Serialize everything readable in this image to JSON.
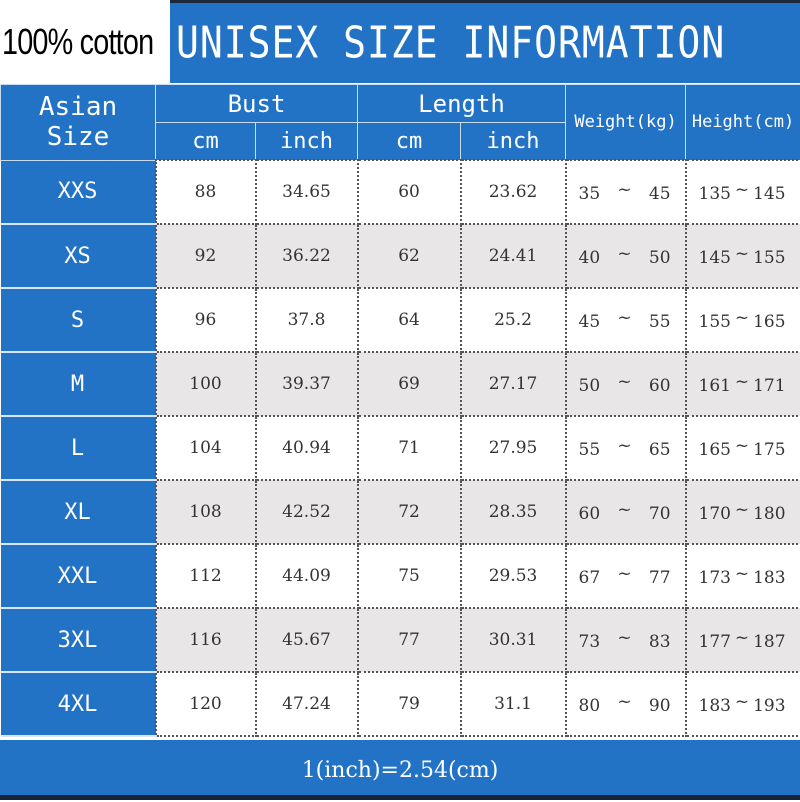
{
  "badge": "100% cotton",
  "title": "UNISEX SIZE INFORMATION",
  "headers": {
    "size": "Asian Size",
    "bust": "Bust",
    "length": "Length",
    "weight": "Weight(kg)",
    "height": "Height(cm)",
    "cm": "cm",
    "inch": "inch",
    "tilde": "~"
  },
  "rows": [
    {
      "size": "XXS",
      "bust_cm": "88",
      "bust_inch": "34.65",
      "len_cm": "60",
      "len_inch": "23.62",
      "w_min": "35",
      "w_max": "45",
      "h_min": "135",
      "h_max": "145"
    },
    {
      "size": "XS",
      "bust_cm": "92",
      "bust_inch": "36.22",
      "len_cm": "62",
      "len_inch": "24.41",
      "w_min": "40",
      "w_max": "50",
      "h_min": "145",
      "h_max": "155"
    },
    {
      "size": "S",
      "bust_cm": "96",
      "bust_inch": "37.8",
      "len_cm": "64",
      "len_inch": "25.2",
      "w_min": "45",
      "w_max": "55",
      "h_min": "155",
      "h_max": "165"
    },
    {
      "size": "M",
      "bust_cm": "100",
      "bust_inch": "39.37",
      "len_cm": "69",
      "len_inch": "27.17",
      "w_min": "50",
      "w_max": "60",
      "h_min": "161",
      "h_max": "171"
    },
    {
      "size": "L",
      "bust_cm": "104",
      "bust_inch": "40.94",
      "len_cm": "71",
      "len_inch": "27.95",
      "w_min": "55",
      "w_max": "65",
      "h_min": "165",
      "h_max": "175"
    },
    {
      "size": "XL",
      "bust_cm": "108",
      "bust_inch": "42.52",
      "len_cm": "72",
      "len_inch": "28.35",
      "w_min": "60",
      "w_max": "70",
      "h_min": "170",
      "h_max": "180"
    },
    {
      "size": "XXL",
      "bust_cm": "112",
      "bust_inch": "44.09",
      "len_cm": "75",
      "len_inch": "29.53",
      "w_min": "67",
      "w_max": "77",
      "h_min": "173",
      "h_max": "183"
    },
    {
      "size": "3XL",
      "bust_cm": "116",
      "bust_inch": "45.67",
      "len_cm": "77",
      "len_inch": "30.31",
      "w_min": "73",
      "w_max": "83",
      "h_min": "177",
      "h_max": "187"
    },
    {
      "size": "4XL",
      "bust_cm": "120",
      "bust_inch": "47.24",
      "len_cm": "79",
      "len_inch": "31.1",
      "w_min": "80",
      "w_max": "90",
      "h_min": "183",
      "h_max": "193"
    }
  ],
  "footer": "1(inch)=2.54(cm)",
  "colors": {
    "header_blue": "#2273c6",
    "alt_row": "#e8e6e6"
  }
}
